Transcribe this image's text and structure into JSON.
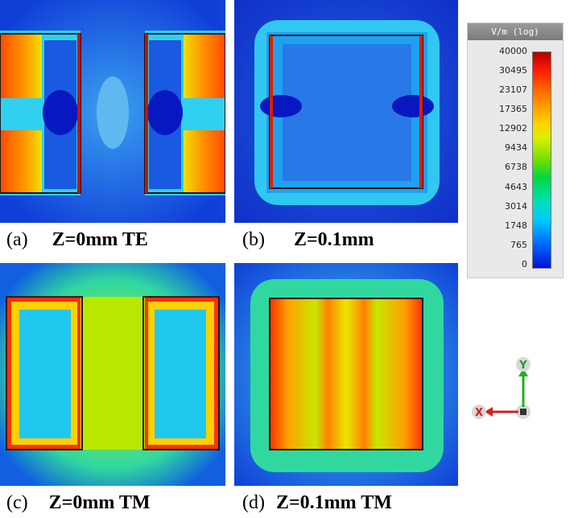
{
  "panels": [
    {
      "tag": "(a)",
      "label": "Z=0mm TE"
    },
    {
      "tag": "(b)",
      "label": "Z=0.1mm"
    },
    {
      "tag": "(c)",
      "label": "Z=0mm TM"
    },
    {
      "tag": "(d)",
      "label": "Z=0.1mm TM"
    }
  ],
  "colorbar": {
    "title": "V/m (log)",
    "ticks": [
      "40000",
      "30495",
      "23107",
      "17365",
      "12902",
      "9434",
      "6738",
      "4643",
      "3014",
      "1748",
      "765",
      "0"
    ]
  },
  "axes": {
    "y": "Y",
    "x": "X"
  },
  "colors": {
    "field_low": "#1030d8",
    "field_mid": "#20c8f0",
    "field_high": "#ff2000",
    "conductor": "#1a1a1a"
  }
}
